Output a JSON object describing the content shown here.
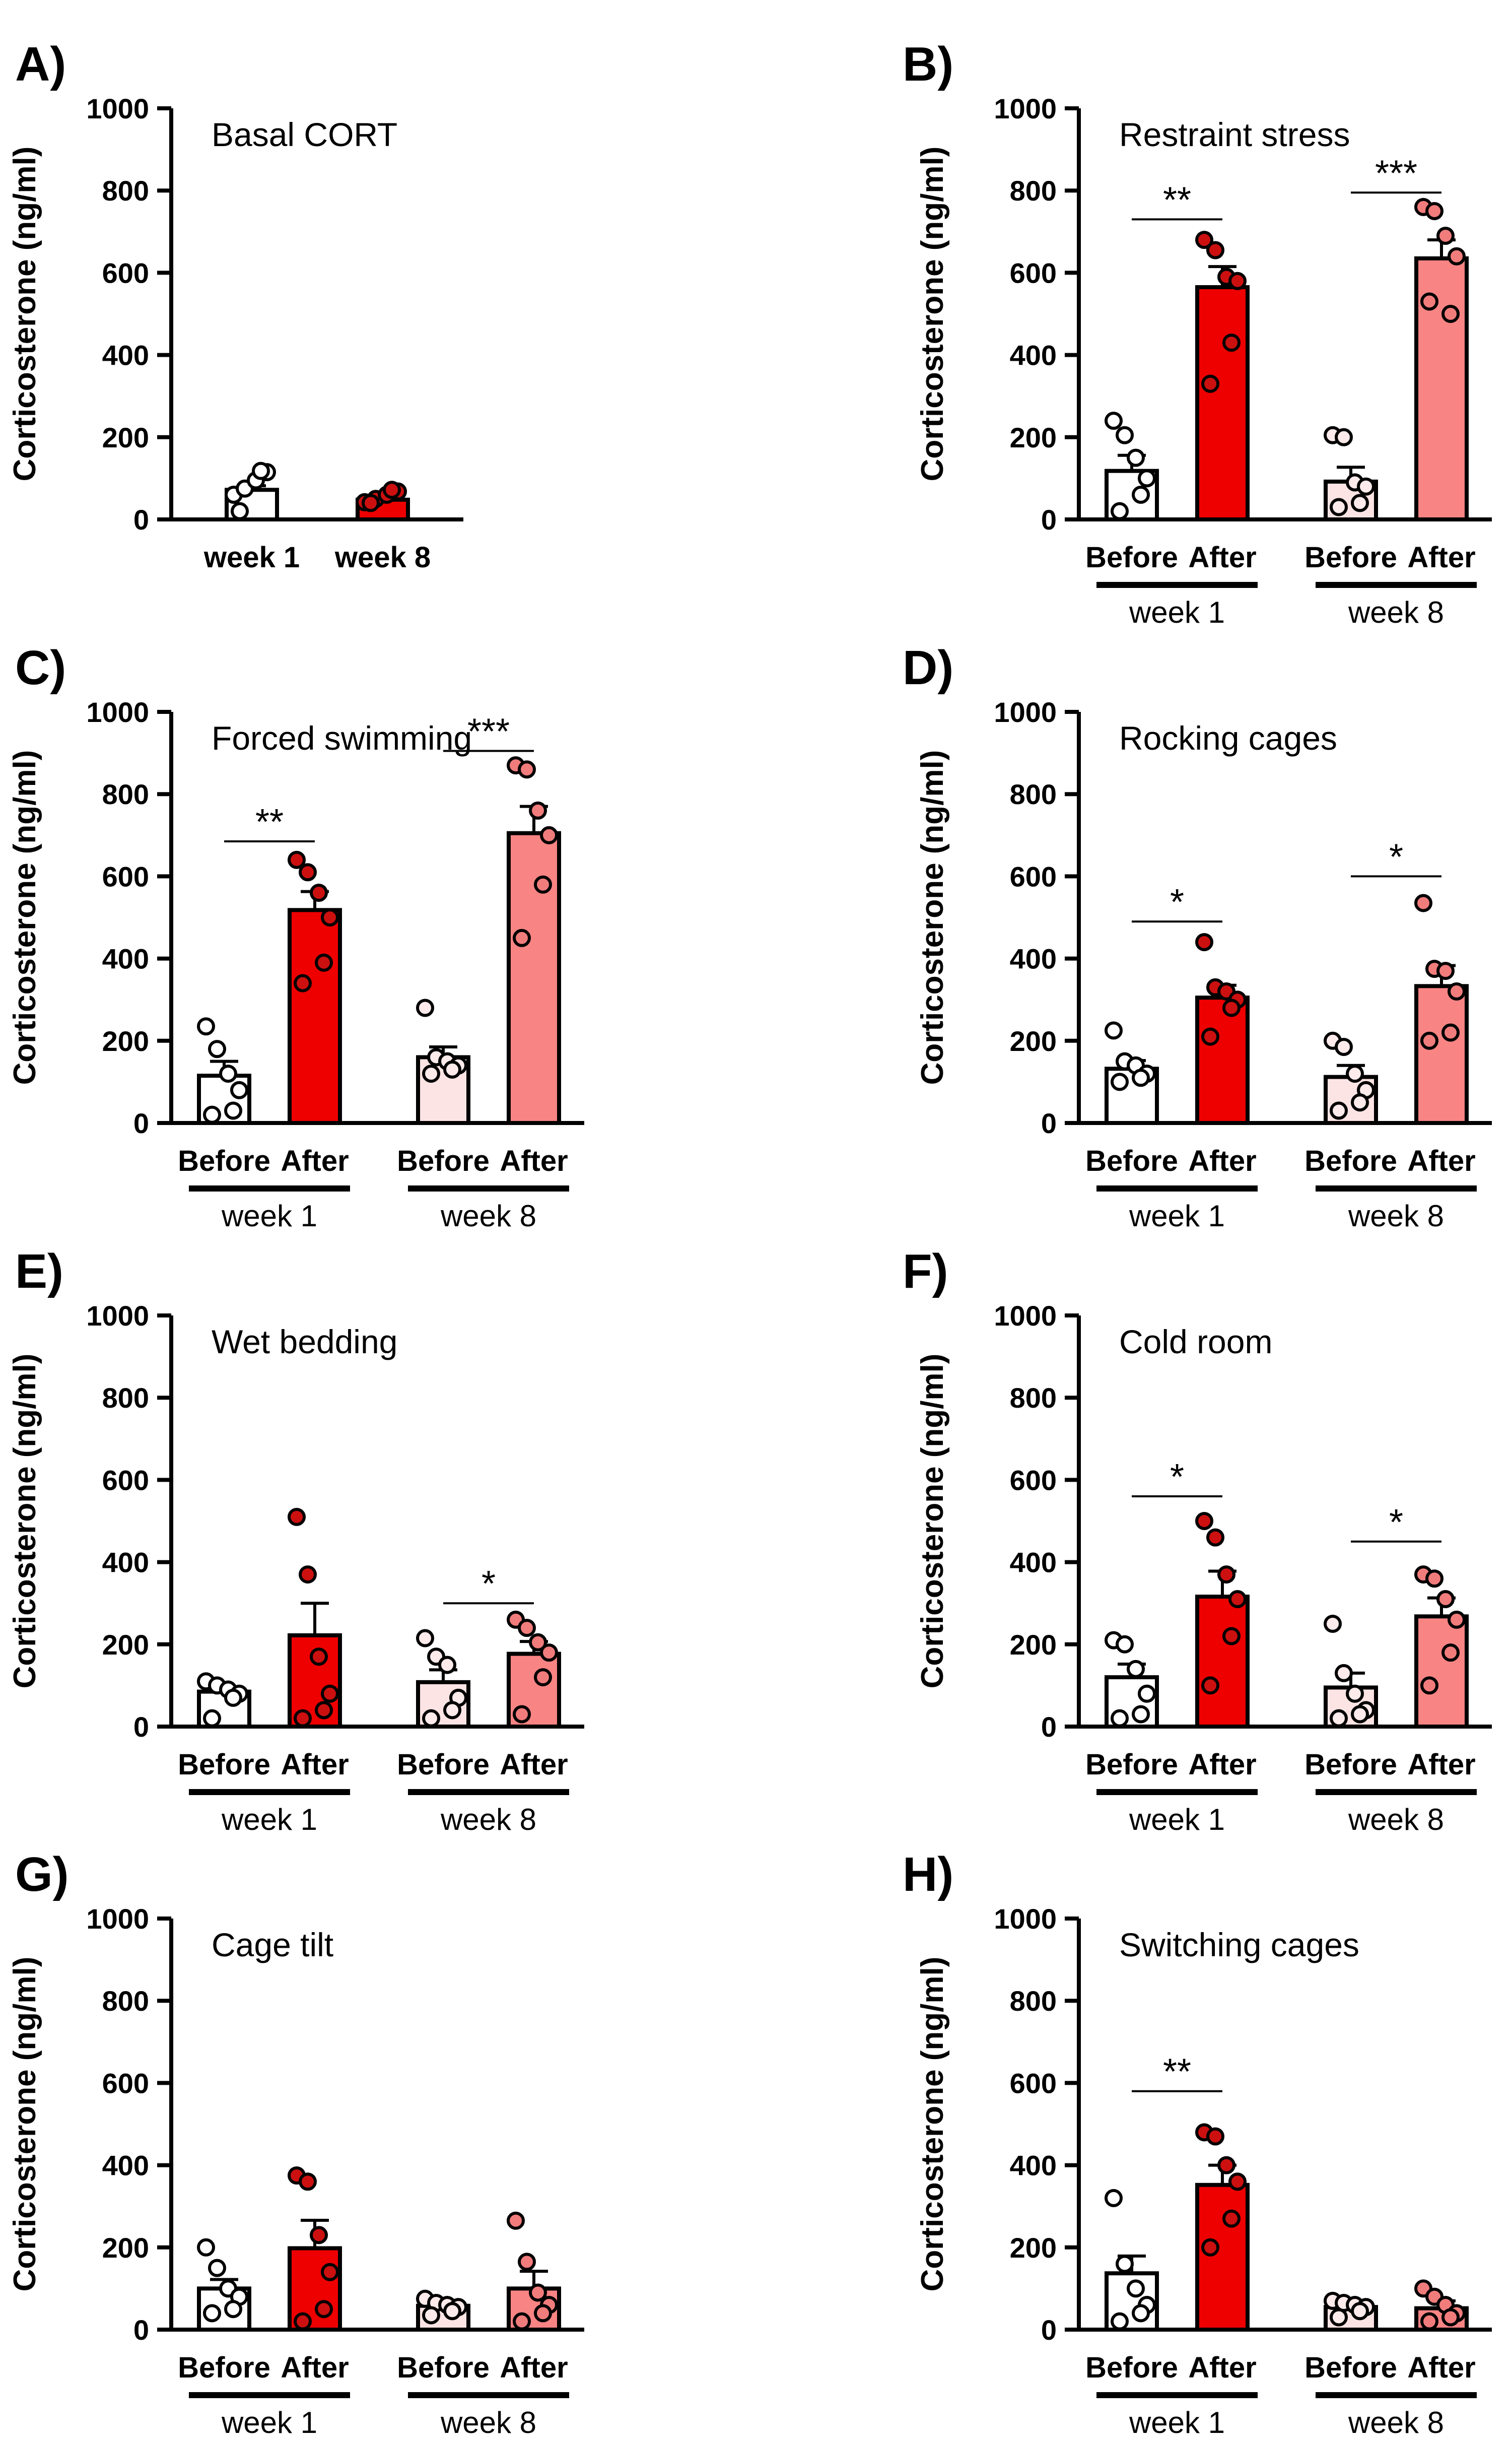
{
  "figure": {
    "ylabel": "Corticosterone (ng/ml)",
    "colors": {
      "axis": "#000000",
      "before_fill": "#ffffff",
      "week1_after_fill": "#ee0000",
      "week8_before_fill": "#fde4e4",
      "week8_after_fill": "#f88484",
      "dot_outline": "#000000",
      "after_dot_fill": "#cc1010",
      "week8_after_dot_fill": "#f17c7c",
      "week8_before_dot_fill": "#fdeaea"
    }
  },
  "chart_data": [
    {
      "id": "A",
      "panel_label": "A)",
      "type": "bar",
      "title": "Basal CORT",
      "ylabel": "Corticosterone (ng/ml)",
      "ylim": [
        0,
        1000
      ],
      "yticks": [
        "0",
        "200",
        "400",
        "600",
        "800",
        "1000"
      ],
      "layout": "simple",
      "categories": [
        "week 1",
        "week 8"
      ],
      "bars": [
        {
          "group": "week 1",
          "mean": 72,
          "sem": 10,
          "fill": "before",
          "points": [
            60,
            75,
            95,
            115,
            118,
            20
          ]
        },
        {
          "group": "week 8",
          "mean": 48,
          "sem": 8,
          "fill": "after",
          "points": [
            42,
            50,
            60,
            68,
            72,
            40
          ]
        }
      ],
      "significance": []
    },
    {
      "id": "B",
      "panel_label": "B)",
      "type": "bar",
      "title": "Restraint stress",
      "ylabel": "Corticosterone (ng/ml)",
      "ylim": [
        0,
        1000
      ],
      "yticks": [
        "0",
        "200",
        "400",
        "600",
        "800",
        "1000"
      ],
      "layout": "before_after",
      "conditions": [
        "Before",
        "After"
      ],
      "groups": [
        "week 1",
        "week 8"
      ],
      "bars": [
        {
          "group": "week 1",
          "condition": "Before",
          "mean": 118,
          "sem": 38,
          "points": [
            240,
            205,
            150,
            100,
            60,
            20
          ]
        },
        {
          "group": "week 1",
          "condition": "After",
          "mean": 565,
          "sem": 50,
          "points": [
            680,
            655,
            590,
            580,
            430,
            330
          ]
        },
        {
          "group": "week 8",
          "condition": "Before",
          "mean": 92,
          "sem": 35,
          "points": [
            205,
            200,
            90,
            80,
            40,
            30
          ]
        },
        {
          "group": "week 8",
          "condition": "After",
          "mean": 635,
          "sem": 45,
          "points": [
            760,
            750,
            690,
            640,
            500,
            530
          ]
        }
      ],
      "significance": [
        {
          "group": "week 1",
          "label": "**",
          "y": 730
        },
        {
          "group": "week 8",
          "label": "***",
          "y": 795
        }
      ]
    },
    {
      "id": "C",
      "panel_label": "C)",
      "type": "bar",
      "title": "Forced swimming",
      "ylabel": "Corticosterone (ng/ml)",
      "ylim": [
        0,
        1000
      ],
      "yticks": [
        "0",
        "200",
        "400",
        "600",
        "800",
        "1000"
      ],
      "layout": "before_after",
      "conditions": [
        "Before",
        "After"
      ],
      "groups": [
        "week 1",
        "week 8"
      ],
      "bars": [
        {
          "group": "week 1",
          "condition": "Before",
          "mean": 115,
          "sem": 35,
          "points": [
            235,
            180,
            120,
            80,
            30,
            20
          ]
        },
        {
          "group": "week 1",
          "condition": "After",
          "mean": 518,
          "sem": 45,
          "points": [
            640,
            610,
            560,
            500,
            390,
            340
          ]
        },
        {
          "group": "week 8",
          "condition": "Before",
          "mean": 160,
          "sem": 25,
          "points": [
            280,
            160,
            150,
            140,
            130,
            120
          ]
        },
        {
          "group": "week 8",
          "condition": "After",
          "mean": 705,
          "sem": 65,
          "points": [
            870,
            860,
            760,
            700,
            580,
            450
          ]
        }
      ],
      "significance": [
        {
          "group": "week 1",
          "label": "**",
          "y": 685
        },
        {
          "group": "week 8",
          "label": "***",
          "y": 905
        }
      ]
    },
    {
      "id": "D",
      "panel_label": "D)",
      "type": "bar",
      "title": "Rocking cages",
      "ylabel": "Corticosterone (ng/ml)",
      "ylim": [
        0,
        1000
      ],
      "yticks": [
        "0",
        "200",
        "400",
        "600",
        "800",
        "1000"
      ],
      "layout": "before_after",
      "conditions": [
        "Before",
        "After"
      ],
      "groups": [
        "week 1",
        "week 8"
      ],
      "bars": [
        {
          "group": "week 1",
          "condition": "Before",
          "mean": 132,
          "sem": 20,
          "points": [
            225,
            150,
            140,
            120,
            110,
            100
          ]
        },
        {
          "group": "week 1",
          "condition": "After",
          "mean": 305,
          "sem": 30,
          "points": [
            440,
            330,
            320,
            300,
            280,
            210
          ]
        },
        {
          "group": "week 8",
          "condition": "Before",
          "mean": 112,
          "sem": 28,
          "points": [
            200,
            185,
            120,
            80,
            50,
            30
          ]
        },
        {
          "group": "week 8",
          "condition": "After",
          "mean": 333,
          "sem": 50,
          "points": [
            535,
            375,
            370,
            320,
            220,
            200
          ]
        }
      ],
      "significance": [
        {
          "group": "week 1",
          "label": "*",
          "y": 490
        },
        {
          "group": "week 8",
          "label": "*",
          "y": 600
        }
      ]
    },
    {
      "id": "E",
      "panel_label": "E)",
      "type": "bar",
      "title": "Wet bedding",
      "ylabel": "Corticosterone (ng/ml)",
      "ylim": [
        0,
        1000
      ],
      "yticks": [
        "0",
        "200",
        "400",
        "600",
        "800",
        "1000"
      ],
      "layout": "before_after",
      "conditions": [
        "Before",
        "After"
      ],
      "groups": [
        "week 1",
        "week 8"
      ],
      "bars": [
        {
          "group": "week 1",
          "condition": "Before",
          "mean": 85,
          "sem": 12,
          "points": [
            110,
            100,
            90,
            80,
            70,
            20
          ]
        },
        {
          "group": "week 1",
          "condition": "After",
          "mean": 222,
          "sem": 78,
          "points": [
            510,
            370,
            170,
            80,
            40,
            20
          ]
        },
        {
          "group": "week 8",
          "condition": "Before",
          "mean": 108,
          "sem": 30,
          "points": [
            215,
            170,
            150,
            70,
            40,
            20
          ]
        },
        {
          "group": "week 8",
          "condition": "After",
          "mean": 177,
          "sem": 30,
          "points": [
            260,
            240,
            205,
            180,
            120,
            30
          ]
        }
      ],
      "significance": [
        {
          "group": "week 8",
          "label": "*",
          "y": 300
        }
      ]
    },
    {
      "id": "F",
      "panel_label": "F)",
      "type": "bar",
      "title": "Cold room",
      "ylabel": "Corticosterone (ng/ml)",
      "ylim": [
        0,
        1000
      ],
      "yticks": [
        "0",
        "200",
        "400",
        "600",
        "800",
        "1000"
      ],
      "layout": "before_after",
      "conditions": [
        "Before",
        "After"
      ],
      "groups": [
        "week 1",
        "week 8"
      ],
      "bars": [
        {
          "group": "week 1",
          "condition": "Before",
          "mean": 120,
          "sem": 32,
          "points": [
            210,
            200,
            140,
            80,
            30,
            20
          ]
        },
        {
          "group": "week 1",
          "condition": "After",
          "mean": 316,
          "sem": 62,
          "points": [
            500,
            460,
            370,
            310,
            220,
            100
          ]
        },
        {
          "group": "week 8",
          "condition": "Before",
          "mean": 95,
          "sem": 35,
          "points": [
            250,
            130,
            80,
            40,
            30,
            20
          ]
        },
        {
          "group": "week 8",
          "condition": "After",
          "mean": 268,
          "sem": 45,
          "points": [
            370,
            360,
            310,
            260,
            180,
            100
          ]
        }
      ],
      "significance": [
        {
          "group": "week 1",
          "label": "*",
          "y": 560
        },
        {
          "group": "week 8",
          "label": "*",
          "y": 450
        }
      ]
    },
    {
      "id": "G",
      "panel_label": "G)",
      "type": "bar",
      "title": "Cage tilt",
      "ylabel": "Corticosterone (ng/ml)",
      "ylim": [
        0,
        1000
      ],
      "yticks": [
        "0",
        "200",
        "400",
        "600",
        "800",
        "1000"
      ],
      "layout": "before_after",
      "conditions": [
        "Before",
        "After"
      ],
      "groups": [
        "week 1",
        "week 8"
      ],
      "bars": [
        {
          "group": "week 1",
          "condition": "Before",
          "mean": 100,
          "sem": 22,
          "points": [
            200,
            150,
            100,
            80,
            50,
            40
          ]
        },
        {
          "group": "week 1",
          "condition": "After",
          "mean": 198,
          "sem": 68,
          "points": [
            375,
            360,
            230,
            140,
            50,
            20
          ]
        },
        {
          "group": "week 8",
          "condition": "Before",
          "mean": 58,
          "sem": 10,
          "points": [
            75,
            65,
            60,
            55,
            45,
            35
          ]
        },
        {
          "group": "week 8",
          "condition": "After",
          "mean": 100,
          "sem": 42,
          "points": [
            265,
            165,
            90,
            60,
            40,
            20
          ]
        }
      ],
      "significance": []
    },
    {
      "id": "H",
      "panel_label": "H)",
      "type": "bar",
      "title": "Switching cages",
      "ylabel": "Corticosterone (ng/ml)",
      "ylim": [
        0,
        1000
      ],
      "yticks": [
        "0",
        "200",
        "400",
        "600",
        "800",
        "1000"
      ],
      "layout": "before_after",
      "conditions": [
        "Before",
        "After"
      ],
      "groups": [
        "week 1",
        "week 8"
      ],
      "bars": [
        {
          "group": "week 1",
          "condition": "Before",
          "mean": 137,
          "sem": 42,
          "points": [
            320,
            160,
            100,
            60,
            40,
            20
          ]
        },
        {
          "group": "week 1",
          "condition": "After",
          "mean": 352,
          "sem": 48,
          "points": [
            480,
            470,
            400,
            360,
            270,
            200
          ]
        },
        {
          "group": "week 8",
          "condition": "Before",
          "mean": 55,
          "sem": 8,
          "points": [
            70,
            65,
            60,
            55,
            45,
            30
          ]
        },
        {
          "group": "week 8",
          "condition": "After",
          "mean": 52,
          "sem": 18,
          "points": [
            100,
            80,
            60,
            40,
            30,
            20
          ]
        }
      ],
      "significance": [
        {
          "group": "week 1",
          "label": "**",
          "y": 580
        }
      ]
    }
  ]
}
